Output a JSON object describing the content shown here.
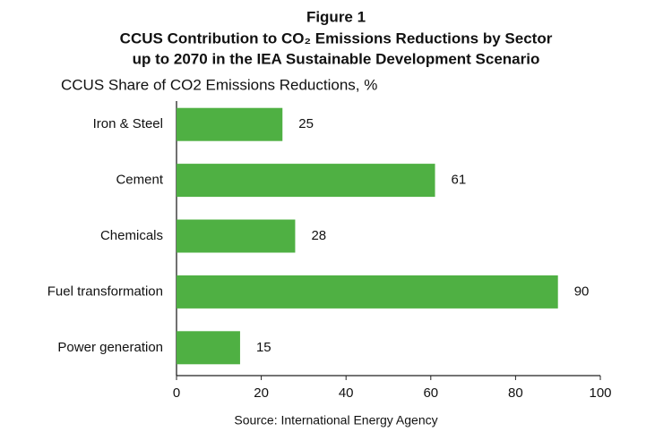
{
  "chart_data": {
    "type": "barh",
    "title": [
      "Figure 1",
      "CCUS Contribution to CO₂ Emissions Reductions by Sector",
      "up to 2070 in the IEA Sustainable Development Scenario"
    ],
    "subtitle": "CCUS Share of CO2 Emissions Reductions, %",
    "source": "Source: International Energy Agency",
    "categories": [
      "Iron & Steel",
      "Cement",
      "Chemicals",
      "Fuel transformation",
      "Power generation"
    ],
    "values": [
      25,
      61,
      28,
      90,
      15
    ],
    "color": "#4fb043",
    "xlim": [
      0,
      100
    ],
    "xticks": [
      0,
      20,
      40,
      60,
      80,
      100
    ]
  }
}
